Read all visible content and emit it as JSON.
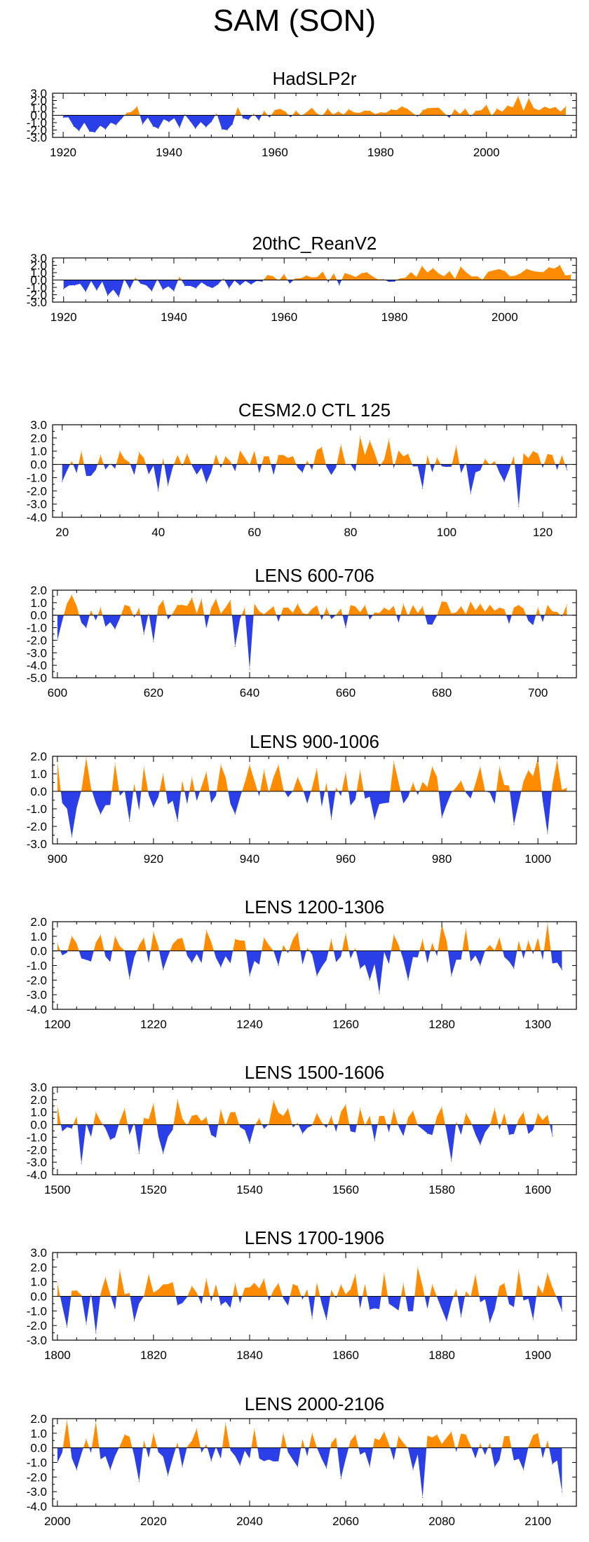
{
  "title": "SAM (SON)",
  "colors": {
    "positive": "#FF8C00",
    "negative": "#2B3FE8",
    "frame": "#000000"
  },
  "chart_data": [
    {
      "type": "area",
      "title": "HadSLP2r",
      "xlim": [
        1918,
        2017
      ],
      "ylim": [
        -3.0,
        3.0
      ],
      "yticks": [
        3.0,
        2.0,
        1.0,
        0.0,
        -1.0,
        -2.0,
        -3.0
      ],
      "xticks": [
        1920,
        1940,
        1960,
        1980,
        2000
      ],
      "seed": 11,
      "bias": [
        0.22,
        -0.11,
        0.47,
        0.37,
        0.53,
        0.75
      ],
      "x": [
        1920,
        1922,
        1923,
        1924,
        1925,
        1926,
        1927,
        1928,
        1929,
        1930,
        1931,
        1932,
        1933,
        1934,
        1935,
        1936,
        1937,
        1938,
        1940,
        1942,
        1943,
        1944,
        1945,
        1947,
        1948,
        1950,
        1951,
        1952,
        1954,
        1955,
        1956,
        1957,
        1958,
        1960,
        1962,
        1964,
        1966,
        1968,
        1970,
        1972,
        1974,
        1976,
        1978,
        1980,
        1982,
        1984,
        1985,
        1988,
        1990,
        1992,
        1994,
        1996,
        1998,
        2000,
        2002,
        2004,
        2006,
        2007,
        2008,
        2010,
        2012,
        2014,
        2015
      ],
      "values": [
        -0.3,
        -1.5,
        -2.1,
        -1.0,
        -2.2,
        -2.3,
        -1.4,
        -1.9,
        -1.0,
        -1.3,
        -0.5,
        0.3,
        0.5,
        1.2,
        -1.2,
        -0.3,
        -1.5,
        -1.8,
        -0.9,
        -1.7,
        0.1,
        -0.8,
        -1.8,
        -1.6,
        -0.9,
        -1.9,
        -2.0,
        -1.2,
        -0.4,
        -0.6,
        0.2,
        -0.7,
        0.6,
        0.7,
        0.5,
        0.6,
        0.4,
        0.2,
        0.9,
        0.5,
        0.8,
        0.3,
        0.6,
        0.4,
        0.8,
        1.2,
        0.9,
        0.7,
        1.0,
        0.3,
        0.8,
        0.9,
        0.6,
        1.4,
        0.9,
        1.3,
        2.6,
        0.6,
        2.3,
        0.7,
        0.9,
        0.5,
        1.2
      ]
    },
    {
      "type": "area",
      "title": "20thC_ReanV2",
      "xlim": [
        1918,
        2013
      ],
      "ylim": [
        -3.0,
        3.0
      ],
      "yticks": [
        3.0,
        2.0,
        1.0,
        0.0,
        -1.0,
        -2.0,
        -3.0
      ],
      "xticks": [
        1920,
        1940,
        1960,
        1980,
        2000
      ],
      "seed": 23,
      "bias": [
        -0.26,
        -0.3,
        0.38,
        0.55,
        0.85,
        1.3
      ],
      "x": [
        1920,
        1922,
        1924,
        1926,
        1928,
        1929,
        1930,
        1932,
        1934,
        1936,
        1938,
        1940,
        1942,
        1944,
        1946,
        1948,
        1950,
        1952,
        1954,
        1956,
        1958,
        1960,
        1962,
        1964,
        1966,
        1968,
        1970,
        1972,
        1974,
        1976,
        1978,
        1980,
        1982,
        1984,
        1985,
        1987,
        1990,
        1992,
        1995,
        1998,
        2000,
        2002,
        2004,
        2006,
        2008,
        2010,
        2012
      ],
      "values": [
        -1.2,
        -0.7,
        -1.6,
        -1.4,
        -2.1,
        -1.3,
        -2.3,
        -1.2,
        -0.5,
        -1.5,
        -1.3,
        -1.5,
        -0.8,
        -1.1,
        -0.8,
        -0.6,
        -1.1,
        -0.7,
        -0.6,
        -0.2,
        0.5,
        0.8,
        0.2,
        0.6,
        0.4,
        -0.3,
        -0.7,
        0.7,
        0.9,
        0.5,
        0.1,
        -0.2,
        0.3,
        0.4,
        1.9,
        1.6,
        1.2,
        1.8,
        0.5,
        1.3,
        1.2,
        0.6,
        1.5,
        1.1,
        1.7,
        2.0,
        0.7
      ]
    },
    {
      "type": "area",
      "title": "CESM2.0 CTL 125",
      "xlim": [
        18,
        127
      ],
      "ylim": [
        -4.0,
        3.0
      ],
      "yticks": [
        3.0,
        2.0,
        1.0,
        0.0,
        -1.0,
        -2.0,
        -3.0,
        -4.0
      ],
      "xticks": [
        20,
        40,
        60,
        80,
        100,
        120
      ],
      "seed": 37,
      "bias": [
        0.0,
        0.0,
        0.12,
        0.15,
        0.1,
        0.0
      ],
      "x": [
        20,
        24,
        28,
        32,
        36,
        40,
        42,
        46,
        50,
        54,
        58,
        62,
        65,
        70,
        74,
        78,
        82,
        84,
        88,
        92,
        95,
        98,
        102,
        105,
        108,
        112,
        115,
        118,
        122,
        125
      ],
      "values": [
        -1.3,
        1.0,
        0.7,
        1.0,
        0.9,
        -2.0,
        -1.6,
        0.8,
        -1.4,
        0.6,
        0.5,
        0.6,
        0.7,
        -0.6,
        1.3,
        1.5,
        2.1,
        1.8,
        1.9,
        0.8,
        -1.8,
        0.5,
        1.4,
        -2.2,
        0.4,
        -1.3,
        -3.2,
        1.0,
        0.7,
        -0.4
      ]
    },
    {
      "type": "area",
      "title": "LENS 600-706",
      "xlim": [
        599,
        708
      ],
      "ylim": [
        -5.0,
        2.0
      ],
      "yticks": [
        2.0,
        1.0,
        0.0,
        -1.0,
        -2.0,
        -3.0,
        -4.0,
        -5.0
      ],
      "xticks": [
        600,
        620,
        640,
        660,
        680,
        700
      ],
      "seed": 41,
      "bias": [
        0.0,
        -0.1,
        0.3,
        0.1,
        0.15,
        0.0
      ],
      "x": [
        600,
        603,
        606,
        609,
        612,
        615,
        618,
        620,
        622,
        625,
        628,
        630,
        633,
        636,
        637,
        639,
        640,
        642,
        645,
        648,
        650,
        653,
        656,
        660,
        664,
        668,
        672,
        676,
        680,
        684,
        688,
        692,
        696,
        700,
        703,
        706
      ],
      "values": [
        -2.0,
        1.6,
        -1.0,
        0.6,
        -1.1,
        0.7,
        -1.5,
        -2.1,
        1.2,
        0.8,
        1.4,
        1.3,
        1.3,
        1.2,
        -2.5,
        0.6,
        -4.3,
        0.3,
        0.7,
        0.6,
        0.9,
        0.5,
        0.6,
        -1.0,
        0.8,
        0.6,
        0.9,
        0.7,
        1.1,
        0.7,
        0.9,
        0.6,
        0.8,
        0.6,
        0.3,
        0.8
      ]
    },
    {
      "type": "area",
      "title": "LENS 900-1006",
      "xlim": [
        899,
        1008
      ],
      "ylim": [
        -3.0,
        2.0
      ],
      "yticks": [
        2.0,
        1.0,
        0.0,
        -1.0,
        -2.0,
        -3.0
      ],
      "xticks": [
        900,
        920,
        940,
        960,
        980,
        1000
      ],
      "seed": 53,
      "bias": [
        -0.2,
        0.0,
        0.15,
        0.05,
        0.1,
        0.0
      ],
      "x": [
        900,
        903,
        906,
        909,
        912,
        915,
        918,
        920,
        922,
        925,
        928,
        931,
        934,
        937,
        940,
        943,
        946,
        950,
        954,
        957,
        960,
        963,
        966,
        970,
        974,
        978,
        980,
        984,
        988,
        992,
        995,
        998,
        1000,
        1002,
        1004,
        1006
      ],
      "values": [
        1.7,
        -2.6,
        1.9,
        -1.3,
        1.6,
        -1.7,
        1.4,
        -0.9,
        1.0,
        -1.7,
        0.8,
        1.1,
        1.5,
        -1.3,
        1.5,
        1.2,
        1.5,
        0.8,
        1.3,
        -1.6,
        1.1,
        1.2,
        -1.6,
        1.7,
        0.5,
        1.4,
        -1.5,
        0.6,
        1.4,
        1.4,
        -1.9,
        1.2,
        1.9,
        -2.4,
        1.8,
        0.2
      ]
    },
    {
      "type": "area",
      "title": "LENS 1200-1306",
      "xlim": [
        1199,
        1308
      ],
      "ylim": [
        -4.0,
        2.0
      ],
      "yticks": [
        2.0,
        1.0,
        0.0,
        -1.0,
        -2.0,
        -3.0,
        -4.0
      ],
      "xticks": [
        1200,
        1220,
        1240,
        1260,
        1280,
        1300
      ],
      "seed": 67,
      "bias": [
        0.15,
        0.0,
        0.0,
        -0.15,
        0.05,
        0.0
      ],
      "x": [
        1200,
        1203,
        1206,
        1209,
        1212,
        1215,
        1218,
        1220,
        1222,
        1225,
        1228,
        1231,
        1234,
        1237,
        1240,
        1243,
        1246,
        1250,
        1254,
        1257,
        1260,
        1263,
        1265,
        1267,
        1270,
        1273,
        1276,
        1280,
        1282,
        1285,
        1288,
        1292,
        1295,
        1298,
        1302,
        1305
      ],
      "values": [
        0.5,
        1.0,
        -0.6,
        1.1,
        1.0,
        -1.9,
        0.9,
        1.3,
        -1.3,
        0.8,
        -0.8,
        1.4,
        -1.1,
        0.8,
        -1.7,
        0.9,
        -1.0,
        1.3,
        -1.7,
        0.8,
        1.2,
        -1.2,
        -2.0,
        -2.9,
        1.1,
        -2.0,
        0.8,
        1.8,
        -1.7,
        1.5,
        -1.0,
        0.9,
        -1.2,
        0.7,
        1.9,
        -1.3
      ]
    },
    {
      "type": "area",
      "title": "LENS 1500-1606",
      "xlim": [
        1499,
        1608
      ],
      "ylim": [
        -4.0,
        3.0
      ],
      "yticks": [
        3.0,
        2.0,
        1.0,
        0.0,
        -1.0,
        -2.0,
        -3.0,
        -4.0
      ],
      "xticks": [
        1500,
        1520,
        1540,
        1560,
        1580,
        1600
      ],
      "seed": 79,
      "bias": [
        -0.1,
        -0.1,
        0.2,
        0.15,
        -0.05,
        0.0
      ],
      "x": [
        1500,
        1503,
        1505,
        1508,
        1511,
        1514,
        1517,
        1520,
        1522,
        1525,
        1528,
        1531,
        1534,
        1537,
        1540,
        1542,
        1545,
        1548,
        1551,
        1554,
        1557,
        1560,
        1563,
        1566,
        1570,
        1574,
        1577,
        1580,
        1582,
        1585,
        1588,
        1591,
        1594,
        1597,
        1600,
        1603
      ],
      "values": [
        1.5,
        -0.3,
        -3.1,
        1.0,
        -1.2,
        1.3,
        -2.3,
        1.7,
        -2.3,
        2.0,
        0.7,
        0.6,
        1.2,
        1.0,
        -1.5,
        0.5,
        1.9,
        1.3,
        -0.7,
        0.9,
        0.7,
        1.6,
        1.3,
        -1.3,
        1.2,
        1.1,
        -0.7,
        1.4,
        -2.9,
        0.9,
        -1.6,
        1.3,
        -0.8,
        1.0,
        0.9,
        -0.9
      ]
    },
    {
      "type": "area",
      "title": "LENS 1700-1906",
      "xlim": [
        1799,
        1908
      ],
      "ylim": [
        -3.0,
        3.0
      ],
      "yticks": [
        3.0,
        2.0,
        1.0,
        0.0,
        -1.0,
        -2.0,
        -3.0
      ],
      "xticks": [
        1800,
        1820,
        1840,
        1860,
        1880,
        1900
      ],
      "seed": 83,
      "bias": [
        -0.2,
        0.1,
        0.1,
        0.05,
        -0.1,
        0.0
      ],
      "x": [
        1800,
        1802,
        1804,
        1806,
        1808,
        1810,
        1813,
        1816,
        1819,
        1822,
        1825,
        1828,
        1831,
        1834,
        1837,
        1840,
        1843,
        1846,
        1850,
        1853,
        1856,
        1859,
        1862,
        1865,
        1868,
        1872,
        1875,
        1878,
        1881,
        1884,
        1887,
        1890,
        1893,
        1896,
        1899,
        1902,
        1905
      ],
      "values": [
        0.9,
        -2.1,
        0.4,
        -1.9,
        -2.5,
        1.3,
        1.8,
        -1.7,
        1.5,
        0.8,
        -0.6,
        0.7,
        1.2,
        -0.6,
        0.9,
        0.6,
        1.2,
        0.9,
        0.7,
        -1.5,
        -1.6,
        0.8,
        1.5,
        -0.9,
        1.6,
        0.9,
        2.0,
        0.8,
        -1.7,
        -1.4,
        1.5,
        -1.8,
        0.9,
        1.8,
        -1.6,
        1.6,
        -1.0
      ]
    },
    {
      "type": "area",
      "title": "LENS 2000-2106",
      "xlim": [
        1999,
        2108
      ],
      "ylim": [
        -4.0,
        2.0
      ],
      "yticks": [
        2.0,
        1.0,
        0.0,
        -1.0,
        -2.0,
        -3.0,
        -4.0
      ],
      "xticks": [
        2000,
        2020,
        2040,
        2060,
        2080,
        2100
      ],
      "seed": 97,
      "bias": [
        0.1,
        -0.05,
        0.0,
        -0.05,
        0.15,
        0.0
      ],
      "x": [
        2000,
        2002,
        2004,
        2006,
        2008,
        2011,
        2014,
        2017,
        2020,
        2023,
        2026,
        2029,
        2032,
        2035,
        2038,
        2041,
        2044,
        2047,
        2050,
        2053,
        2056,
        2059,
        2062,
        2065,
        2068,
        2071,
        2074,
        2076,
        2079,
        2082,
        2085,
        2088,
        2091,
        2094,
        2097,
        2100,
        2103,
        2105
      ],
      "values": [
        -1.0,
        1.9,
        -1.5,
        0.6,
        1.8,
        -1.5,
        0.9,
        -2.3,
        1.0,
        -1.9,
        -1.3,
        1.3,
        -0.9,
        1.7,
        -1.2,
        1.3,
        -0.8,
        1.0,
        -1.3,
        1.0,
        -1.4,
        -2.1,
        0.9,
        -1.3,
        1.1,
        0.8,
        -1.5,
        -3.4,
        0.9,
        1.1,
        0.9,
        0.3,
        -1.3,
        0.8,
        -1.5,
        1.0,
        -1.1,
        -3.0
      ]
    }
  ]
}
